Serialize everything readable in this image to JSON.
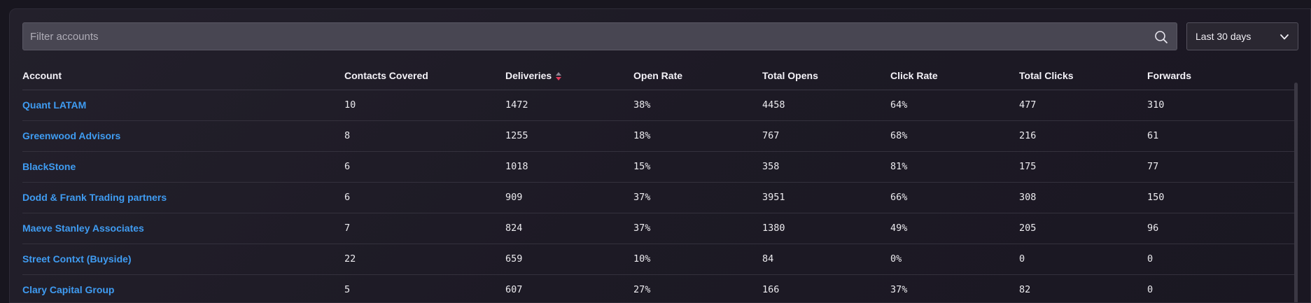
{
  "filter": {
    "placeholder": "Filter accounts",
    "value": ""
  },
  "date_range": {
    "selected": "Last 30 days"
  },
  "table": {
    "columns": [
      "Account",
      "Contacts Covered",
      "Deliveries",
      "Open Rate",
      "Total Opens",
      "Click Rate",
      "Total Clicks",
      "Forwards"
    ],
    "sorted_column": "Deliveries",
    "sort_direction": "descending",
    "rows": [
      [
        "Quant LATAM",
        "10",
        "1472",
        "38%",
        "4458",
        "64%",
        "477",
        "310"
      ],
      [
        "Greenwood Advisors",
        "8",
        "1255",
        "18%",
        "767",
        "68%",
        "216",
        "61"
      ],
      [
        "BlackStone",
        "6",
        "1018",
        "15%",
        "358",
        "81%",
        "175",
        "77"
      ],
      [
        "Dodd & Frank Trading partners",
        "6",
        "909",
        "37%",
        "3951",
        "66%",
        "308",
        "150"
      ],
      [
        "Maeve Stanley Associates",
        "7",
        "824",
        "37%",
        "1380",
        "49%",
        "205",
        "96"
      ],
      [
        "Street Contxt (Buyside)",
        "22",
        "659",
        "10%",
        "84",
        "0%",
        "0",
        "0"
      ],
      [
        "Clary Capital Group",
        "5",
        "607",
        "27%",
        "166",
        "37%",
        "82",
        "0"
      ]
    ]
  },
  "colors": {
    "link": "#3f9cf2",
    "sort_active": "#e03a5a",
    "background": "#18161f"
  },
  "icons": {
    "search": "search-icon",
    "dropdown": "chevron-down-icon",
    "sort": "sort-icon"
  }
}
